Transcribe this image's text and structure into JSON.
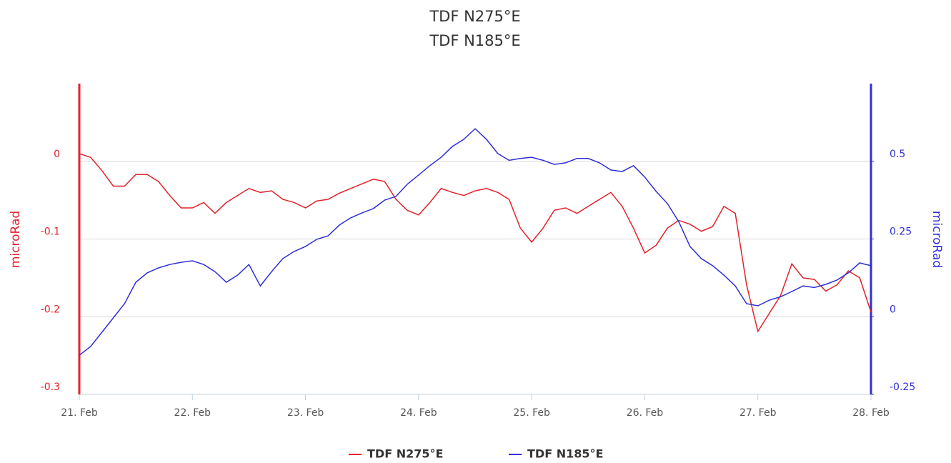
{
  "chart_data": {
    "type": "line",
    "title": "TDF N275°E",
    "subtitle": "TDF N185°E",
    "x": [
      21.0,
      21.1,
      21.2,
      21.3,
      21.4,
      21.5,
      21.6,
      21.7,
      21.8,
      21.9,
      22.0,
      22.1,
      22.2,
      22.3,
      22.4,
      22.5,
      22.6,
      22.7,
      22.8,
      22.9,
      23.0,
      23.1,
      23.2,
      23.3,
      23.4,
      23.5,
      23.6,
      23.7,
      23.8,
      23.9,
      24.0,
      24.1,
      24.2,
      24.3,
      24.4,
      24.5,
      24.6,
      24.7,
      24.8,
      24.9,
      25.0,
      25.1,
      25.2,
      25.3,
      25.4,
      25.5,
      25.6,
      25.7,
      25.8,
      25.9,
      26.0,
      26.1,
      26.2,
      26.3,
      26.4,
      26.5,
      26.6,
      26.7,
      26.8,
      26.9,
      27.0,
      27.1,
      27.2,
      27.3,
      27.4,
      27.5,
      27.6,
      27.7,
      27.8,
      27.9,
      28.0
    ],
    "xlim": [
      21,
      28
    ],
    "xticks": [
      {
        "value": 21,
        "label": "21. Feb"
      },
      {
        "value": 22,
        "label": "22. Feb"
      },
      {
        "value": 23,
        "label": "23. Feb"
      },
      {
        "value": 24,
        "label": "24. Feb"
      },
      {
        "value": 25,
        "label": "25. Feb"
      },
      {
        "value": 26,
        "label": "26. Feb"
      },
      {
        "value": 27,
        "label": "27. Feb"
      },
      {
        "value": 28,
        "label": "28. Feb"
      }
    ],
    "ylabel": "microRad",
    "ylim": [
      -0.3,
      0.1
    ],
    "yticks": [
      -0.3,
      -0.2,
      -0.1,
      0
    ],
    "y2label": "microRad",
    "y2lim": [
      -0.25,
      0.75
    ],
    "y2ticks": [
      -0.25,
      0,
      0.25,
      0.5
    ],
    "grid": true,
    "legend": "bottom",
    "series": [
      {
        "name": "TDF N275°E",
        "color": "#e3222b",
        "axis": "y",
        "values": [
          0.01,
          0.005,
          -0.012,
          -0.032,
          -0.032,
          -0.017,
          -0.017,
          -0.026,
          -0.044,
          -0.06,
          -0.06,
          -0.053,
          -0.067,
          -0.053,
          -0.044,
          -0.035,
          -0.04,
          -0.038,
          -0.049,
          -0.053,
          -0.06,
          -0.051,
          -0.049,
          -0.041,
          -0.035,
          -0.029,
          -0.023,
          -0.026,
          -0.049,
          -0.063,
          -0.069,
          -0.053,
          -0.035,
          -0.04,
          -0.044,
          -0.038,
          -0.035,
          -0.04,
          -0.049,
          -0.086,
          -0.104,
          -0.086,
          -0.063,
          -0.06,
          -0.067,
          -0.058,
          -0.049,
          -0.04,
          -0.058,
          -0.086,
          -0.118,
          -0.108,
          -0.086,
          -0.076,
          -0.081,
          -0.09,
          -0.084,
          -0.058,
          -0.067,
          -0.159,
          -0.219,
          -0.196,
          -0.173,
          -0.132,
          -0.15,
          -0.152,
          -0.167,
          -0.159,
          -0.141,
          -0.15,
          -0.194
        ]
      },
      {
        "name": "TDF N185°E",
        "color": "#2f2fd8",
        "axis": "y2",
        "values": [
          -0.124,
          -0.096,
          -0.05,
          -0.004,
          0.042,
          0.111,
          0.141,
          0.157,
          0.168,
          0.175,
          0.18,
          0.168,
          0.145,
          0.111,
          0.134,
          0.168,
          0.099,
          0.145,
          0.187,
          0.21,
          0.226,
          0.249,
          0.26,
          0.295,
          0.318,
          0.334,
          0.348,
          0.375,
          0.387,
          0.426,
          0.456,
          0.486,
          0.513,
          0.548,
          0.571,
          0.605,
          0.571,
          0.525,
          0.503,
          0.509,
          0.513,
          0.503,
          0.49,
          0.495,
          0.509,
          0.509,
          0.495,
          0.472,
          0.467,
          0.486,
          0.449,
          0.403,
          0.364,
          0.306,
          0.226,
          0.187,
          0.164,
          0.134,
          0.099,
          0.042,
          0.035,
          0.053,
          0.064,
          0.081,
          0.099,
          0.094,
          0.104,
          0.118,
          0.141,
          0.173,
          0.164
        ]
      }
    ]
  }
}
